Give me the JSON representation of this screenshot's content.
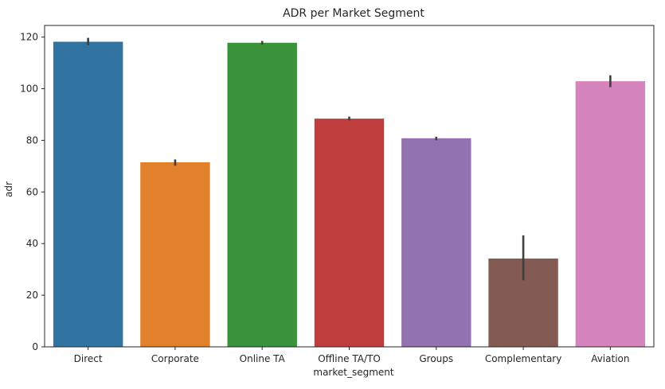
{
  "chart_data": {
    "type": "bar",
    "title": "ADR per Market Segment",
    "xlabel": "market_segment",
    "ylabel": "adr",
    "categories": [
      "Direct",
      "Corporate",
      "Online TA",
      "Offline TA/TO",
      "Groups",
      "Complementary",
      "Aviation"
    ],
    "values": [
      118.2,
      71.5,
      117.8,
      88.4,
      80.8,
      34.2,
      102.9
    ],
    "error_low": [
      116.8,
      70.2,
      117.1,
      87.7,
      80.0,
      25.8,
      100.6
    ],
    "error_high": [
      119.7,
      72.6,
      118.5,
      89.2,
      81.4,
      43.2,
      105.2
    ],
    "colors": [
      "#3274a1",
      "#e1812c",
      "#3a923a",
      "#c03d3e",
      "#9372b2",
      "#845b53",
      "#d684bd"
    ],
    "ylim": [
      0,
      124.5
    ],
    "yticks": [
      0,
      20,
      40,
      60,
      80,
      100,
      120
    ],
    "grid": false,
    "legend": "none"
  }
}
